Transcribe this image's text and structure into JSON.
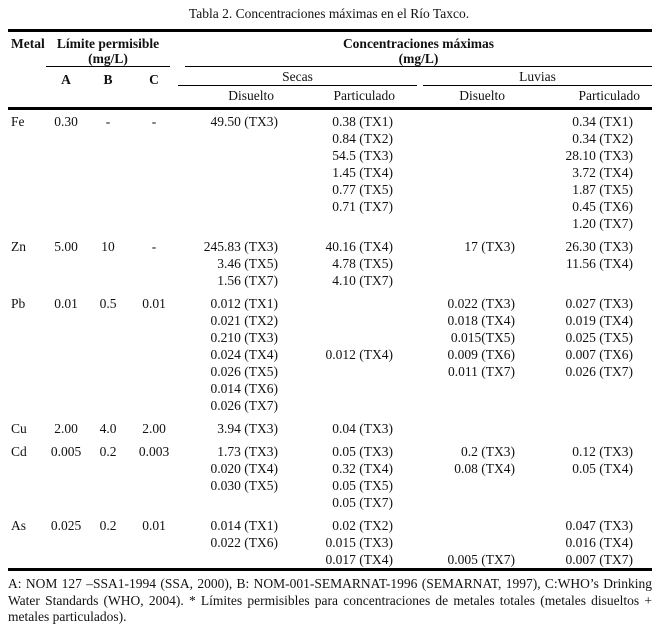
{
  "title": "Tabla 2. Concentraciones máximas en el Río Taxco.",
  "header": {
    "metal": "Metal",
    "limite_title": "Límite permisible",
    "limite_unit": "(mg/L)",
    "limite_cols": [
      "A",
      "B",
      "C"
    ],
    "conc_title": "Concentraciones máximas",
    "conc_unit": "(mg/L)",
    "seasons": [
      "Secas",
      "Luvias"
    ],
    "subcols": [
      "Disuelto",
      "Particulado",
      "Disuelto",
      "Particulado"
    ]
  },
  "rows": [
    {
      "metal": "Fe",
      "a": "0.30",
      "b": "-",
      "c": "-",
      "secas_disuelto": [
        "49.50 (TX3)"
      ],
      "secas_particulado": [
        "0.38 (TX1)",
        "0.84 (TX2)",
        "54.5 (TX3)",
        "1.45 (TX4)",
        "0.77 (TX5)",
        "0.71 (TX7)"
      ],
      "luvias_disuelto": [],
      "luvias_particulado": [
        "0.34 (TX1)",
        "0.34 (TX2)",
        "28.10 (TX3)",
        "3.72 (TX4)",
        "1.87 (TX5)",
        "0.45 (TX6)",
        "1.20 (TX7)"
      ]
    },
    {
      "metal": "Zn",
      "a": "5.00",
      "b": "10",
      "c": "-",
      "secas_disuelto": [
        "245.83 (TX3)",
        "3.46 (TX5)",
        "1.56 (TX7)"
      ],
      "secas_particulado": [
        "40.16 (TX4)",
        "4.78 (TX5)",
        "4.10 (TX7)"
      ],
      "luvias_disuelto": [
        "17 (TX3)"
      ],
      "luvias_particulado": [
        "26.30 (TX3)",
        "11.56 (TX4)"
      ]
    },
    {
      "metal": "Pb",
      "a": "0.01",
      "b": "0.5",
      "c": "0.01",
      "secas_disuelto": [
        "0.012 (TX1)",
        "0.021 (TX2)",
        "0.210 (TX3)",
        "0.024 (TX4)",
        "0.026 (TX5)",
        "0.014 (TX6)",
        "0.026 (TX7)"
      ],
      "secas_particulado": [
        "",
        "",
        "",
        "0.012 (TX4)"
      ],
      "luvias_disuelto": [
        "0.022 (TX3)",
        "0.018 (TX4)",
        "0.015(TX5)",
        "0.009 (TX6)",
        "0.011 (TX7)"
      ],
      "luvias_particulado": [
        "0.027 (TX3)",
        "0.019 (TX4)",
        "0.025 (TX5)",
        "0.007 (TX6)",
        "0.026 (TX7)"
      ]
    },
    {
      "metal": "Cu",
      "a": "2.00",
      "b": "4.0",
      "c": "2.00",
      "secas_disuelto": [
        "3.94 (TX3)"
      ],
      "secas_particulado": [
        "0.04 (TX3)"
      ],
      "luvias_disuelto": [],
      "luvias_particulado": []
    },
    {
      "metal": "Cd",
      "a": "0.005",
      "b": "0.2",
      "c": "0.003",
      "secas_disuelto": [
        "1.73 (TX3)",
        "0.020 (TX4)",
        "0.030 (TX5)"
      ],
      "secas_particulado": [
        "0.05 (TX3)",
        "0.32 (TX4)",
        "0.05 (TX5)",
        "0.05 (TX7)"
      ],
      "luvias_disuelto": [
        "0.2 (TX3)",
        "0.08 (TX4)"
      ],
      "luvias_particulado": [
        "0.12 (TX3)",
        "0.05 (TX4)"
      ]
    },
    {
      "metal": "As",
      "a": "0.025",
      "b": "0.2",
      "c": "0.01",
      "secas_disuelto": [
        "0.014 (TX1)",
        "0.022 (TX6)"
      ],
      "secas_particulado": [
        "0.02 (TX2)",
        "0.015 (TX3)",
        "0.017 (TX4)"
      ],
      "luvias_disuelto": [
        "",
        "",
        "0.005 (TX7)"
      ],
      "luvias_particulado": [
        "0.047 (TX3)",
        "0.016 (TX4)",
        "0.007 (TX7)"
      ]
    }
  ],
  "footnote": "A: NOM 127 –SSA1-1994 (SSA, 2000), B: NOM-001-SEMARNAT-1996 (SEMARNAT, 1997), C:WHO’s Drinking Water Standards (WHO, 2004). * Límites permisibles para concentraciones de metales totales (metales disueltos + metales particulados)."
}
